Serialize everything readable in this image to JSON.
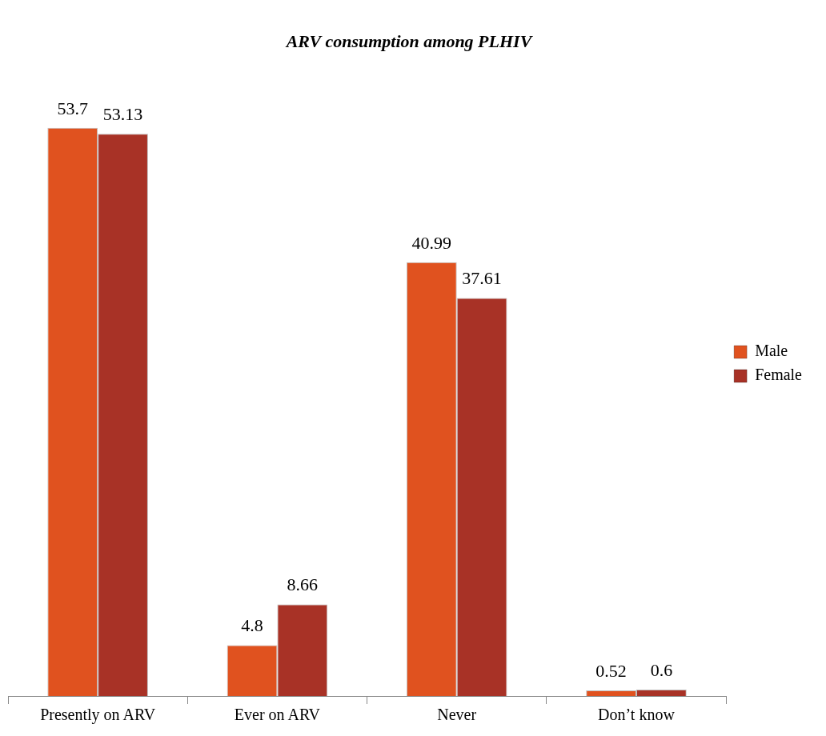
{
  "chart_data": {
    "type": "bar",
    "title": "ARV consumption among PLHIV",
    "categories": [
      "Presently on ARV",
      "Ever on ARV",
      "Never",
      "Don’t know"
    ],
    "series": [
      {
        "name": "Male",
        "color": "#e0521f",
        "values": [
          53.7,
          4.8,
          40.99,
          0.52
        ]
      },
      {
        "name": "Female",
        "color": "#a83226",
        "values": [
          53.13,
          8.66,
          37.61,
          0.6
        ]
      }
    ],
    "data_labels": true,
    "legend": "right",
    "grid": false
  }
}
